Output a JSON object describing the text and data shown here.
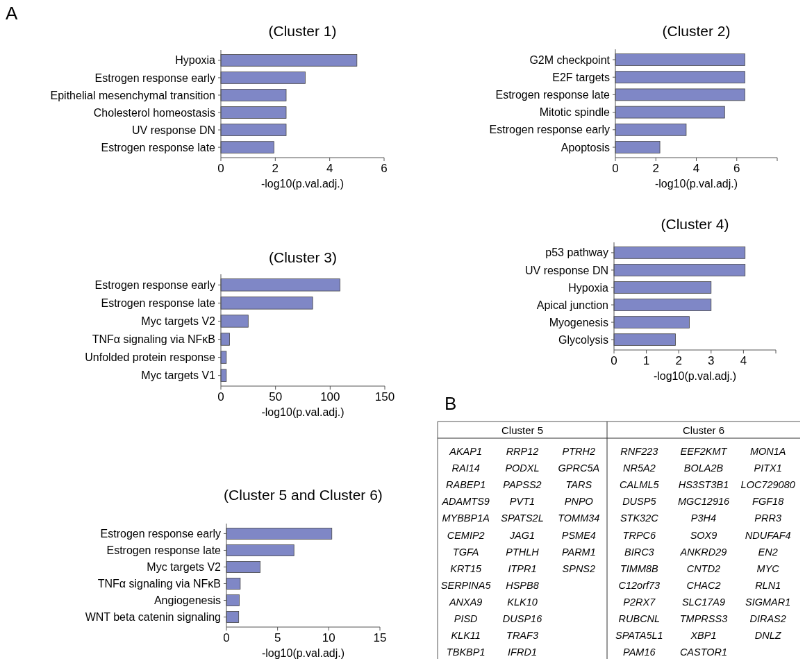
{
  "chart_data": [
    {
      "type": "bar",
      "orientation": "horizontal",
      "title": "(Cluster 1)",
      "xlabel": "-log10(p.val.adj.)",
      "annotations": [
        "A"
      ],
      "color": "#7f87c6",
      "xlim": [
        0,
        6
      ],
      "xticks": [
        0,
        2,
        4,
        6
      ],
      "categories": [
        "Hypoxia",
        "Estrogen response early",
        "Epithelial mesenchymal transition",
        "Cholesterol homeostasis",
        "UV response DN",
        "Estrogen response late"
      ],
      "values": [
        5.0,
        3.1,
        2.4,
        2.4,
        2.4,
        1.95
      ]
    },
    {
      "type": "bar",
      "orientation": "horizontal",
      "title": "(Cluster 2)",
      "xlabel": "-log10(p.val.adj.)",
      "color": "#7f87c6",
      "xlim": [
        0,
        8
      ],
      "xticks": [
        0,
        2,
        4,
        6,
        {
          "value": 8,
          "label": null
        }
      ],
      "categories": [
        "G2M checkpoint",
        "E2F targets",
        "Estrogen response late",
        "Mitotic spindle",
        "Estrogen response early",
        "Apoptosis"
      ],
      "values": [
        6.4,
        6.4,
        6.4,
        5.4,
        3.5,
        2.2
      ]
    },
    {
      "type": "bar",
      "orientation": "horizontal",
      "title": "(Cluster 3)",
      "xlabel": "-log10(p.val.adj.)",
      "color": "#7f87c6",
      "xlim": [
        0,
        150
      ],
      "xticks": [
        0,
        50,
        100,
        150
      ],
      "categories": [
        "Estrogen response early",
        "Estrogen response late",
        "Myc targets V2",
        "TNFα signaling via NFκB",
        "Unfolded protein response",
        "Myc targets V1"
      ],
      "values": [
        109,
        84,
        25,
        8,
        5,
        5
      ]
    },
    {
      "type": "bar",
      "orientation": "horizontal",
      "title": "(Cluster 4)",
      "xlabel": "-log10(p.val.adj.)",
      "color": "#7f87c6",
      "xlim": [
        0,
        5
      ],
      "xticks": [
        0,
        1,
        2,
        3,
        4,
        {
          "value": 5,
          "label": null
        }
      ],
      "categories": [
        "p53 pathway",
        "UV response DN",
        "Hypoxia",
        "Apical junction",
        "Myogenesis",
        "Glycolysis"
      ],
      "values": [
        4.05,
        4.05,
        3.0,
        3.0,
        2.33,
        1.9
      ]
    },
    {
      "type": "bar",
      "orientation": "horizontal",
      "title": "(Cluster 5 and Cluster 6)",
      "xlabel": "-log10(p.val.adj.)",
      "color": "#7f87c6",
      "xlim": [
        0,
        15
      ],
      "xticks": [
        0,
        5,
        10,
        15
      ],
      "categories": [
        "Estrogen response early",
        "Estrogen response late",
        "Myc targets V2",
        "TNFα signaling via NFκB",
        "Angiogenesis",
        "WNT beta catenin signaling"
      ],
      "values": [
        10.3,
        6.6,
        3.3,
        1.35,
        1.25,
        1.2
      ]
    },
    {
      "type": "other",
      "annotations": [
        "B"
      ],
      "categories": [
        "Cluster 5",
        "Cluster 6"
      ],
      "cell_labels": [
        [
          "AKAP1",
          "RRP12",
          "PTRH2",
          "RNF223",
          "EEF2KMT",
          "MON1A"
        ],
        [
          "RAI14",
          "PODXL",
          "GPRC5A",
          "NR5A2",
          "BOLA2B",
          "PITX1"
        ],
        [
          "RABEP1",
          "PAPSS2",
          "TARS",
          "CALML5",
          "HS3ST3B1",
          "LOC729080"
        ],
        [
          "ADAMTS9",
          "PVT1",
          "PNPO",
          "DUSP5",
          "MGC12916",
          "FGF18"
        ],
        [
          "MYBBP1A",
          "SPATS2L",
          "TOMM34",
          "STK32C",
          "P3H4",
          "PRR3"
        ],
        [
          "CEMIP2",
          "JAG1",
          "PSME4",
          "TRPC6",
          "SOX9",
          "NDUFAF4"
        ],
        [
          "TGFA",
          "PTHLH",
          "PARM1",
          "BIRC3",
          "ANKRD29",
          "EN2"
        ],
        [
          "KRT15",
          "ITPR1",
          "SPNS2",
          "TIMM8B",
          "CNTD2",
          "MYC"
        ],
        [
          "SERPINA5",
          "HSPB8",
          null,
          "C12orf73",
          "CHAC2",
          "RLN1"
        ],
        [
          "ANXA9",
          "KLK10",
          null,
          "P2RX7",
          "SLC17A9",
          "SIGMAR1"
        ],
        [
          "PISD",
          "DUSP16",
          null,
          "RUBCNL",
          "TMPRSS3",
          "DIRAS2"
        ],
        [
          "KLK11",
          "TRAF3",
          null,
          "SPATA5L1",
          "XBP1",
          "DNLZ"
        ],
        [
          "TBKBP1",
          "IFRD1",
          null,
          "PAM16",
          "CASTOR1",
          null
        ]
      ]
    }
  ]
}
